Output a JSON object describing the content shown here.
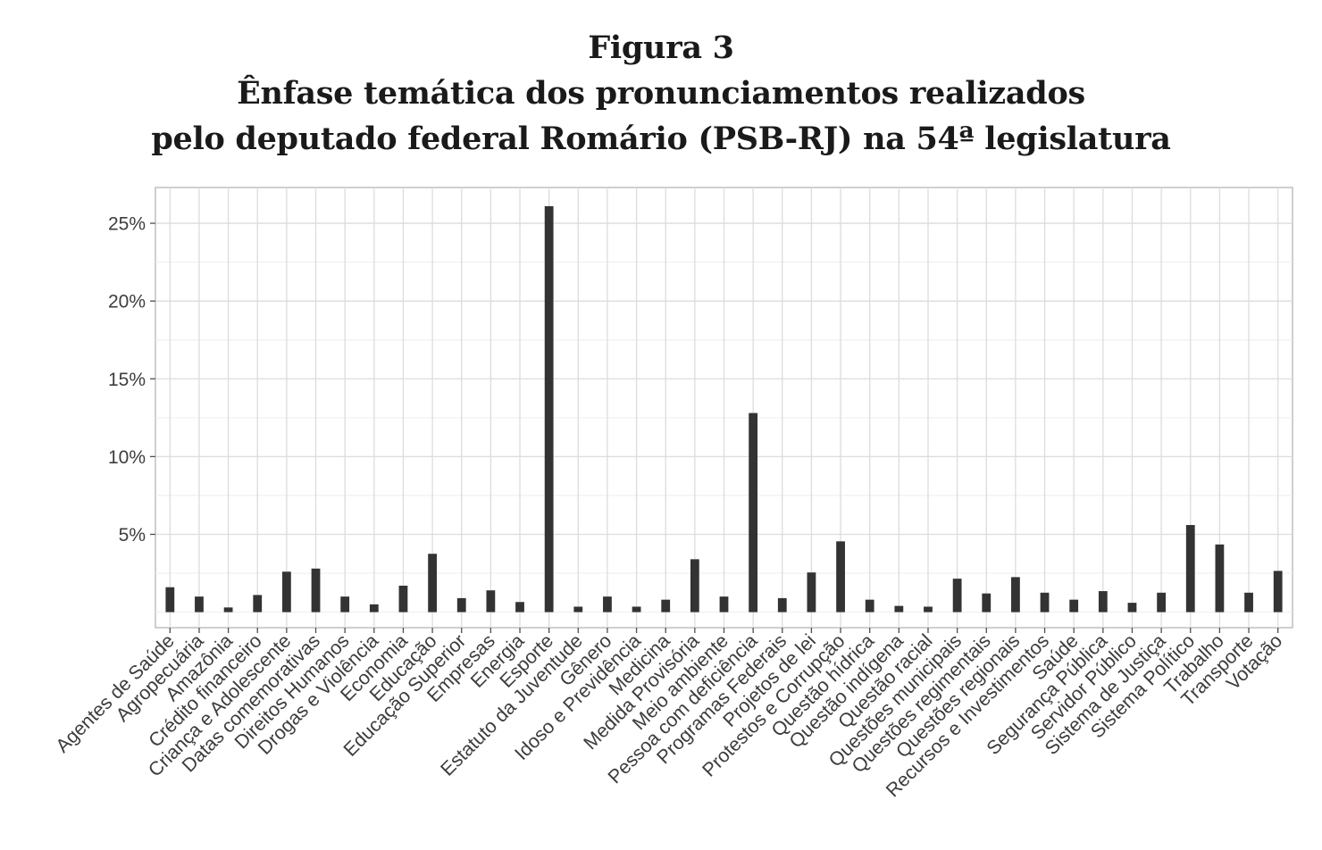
{
  "figure": {
    "label": "Figura 3",
    "title_line1": "Ênfase temática dos pronunciamentos realizados",
    "title_line2": "pelo deputado federal Romário (PSB-RJ) na 54ª legislatura"
  },
  "chart_data": {
    "type": "bar",
    "title": "Ênfase temática dos pronunciamentos realizados pelo deputado federal Romário (PSB-RJ) na 54ª legislatura",
    "xlabel": "",
    "ylabel": "",
    "ylim": [
      -1.0,
      27.3
    ],
    "y_ticks": [
      5,
      10,
      15,
      20,
      25
    ],
    "y_tick_labels": [
      "5%",
      "10%",
      "15%",
      "20%",
      "25%"
    ],
    "grid": true,
    "bar_color": "#333333",
    "categories": [
      "Agentes de Saúde",
      "Agropecuária",
      "Amazônia",
      "Crédito financeiro",
      "Criança e Adolescente",
      "Datas comemorativas",
      "Direitos Humanos",
      "Drogas e Violência",
      "Economia",
      "Educação",
      "Educação Superior",
      "Empresas",
      "Energia",
      "Esporte",
      "Estatuto da Juventude",
      "Gênero",
      "Idoso e Previdência",
      "Medicina",
      "Medida Provisória",
      "Meio ambiente",
      "Pessoa com deficiência",
      "Programas Federais",
      "Projetos de lei",
      "Protestos e Corrupção",
      "Questão hídrica",
      "Questão indígena",
      "Questão racial",
      "Questões municipais",
      "Questões regimentais",
      "Questões regionais",
      "Recursos e Investimentos",
      "Saúde",
      "Segurança Pública",
      "Servidor Público",
      "Sistema de Justiça",
      "Sistema Político",
      "Trabalho",
      "Transporte",
      "Votação"
    ],
    "values": [
      1.6,
      1.0,
      0.3,
      1.1,
      2.6,
      2.8,
      1.0,
      0.5,
      1.7,
      3.75,
      0.9,
      1.4,
      0.65,
      26.1,
      0.35,
      1.0,
      0.35,
      0.8,
      3.4,
      1.0,
      12.8,
      0.9,
      2.55,
      4.55,
      0.8,
      0.4,
      0.35,
      2.15,
      1.2,
      2.25,
      1.25,
      0.8,
      1.35,
      0.6,
      1.25,
      5.6,
      4.35,
      1.25,
      2.65
    ]
  }
}
